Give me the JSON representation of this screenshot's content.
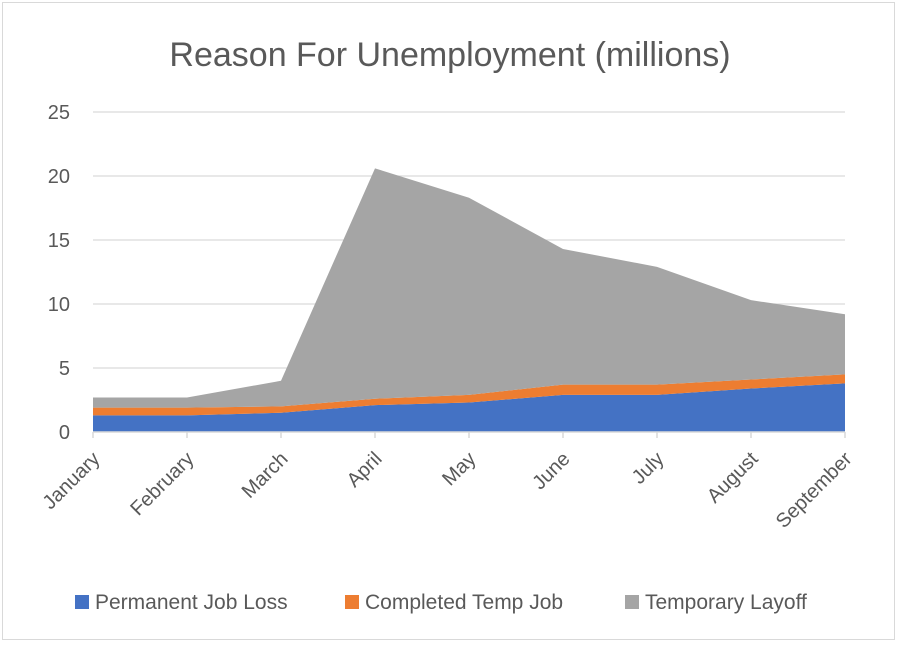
{
  "chart_data": {
    "type": "area",
    "stacked": true,
    "title": "Reason For Unemployment (millions)",
    "xlabel": "",
    "ylabel": "",
    "categories": [
      "January",
      "February",
      "March",
      "April",
      "May",
      "June",
      "July",
      "August",
      "September"
    ],
    "y_ticks": [
      "0",
      "5",
      "10",
      "15",
      "20",
      "25"
    ],
    "ylim": [
      0,
      25
    ],
    "grid": true,
    "legend": "bottom",
    "series": [
      {
        "name": "Permanent Job Loss",
        "color": "#4472c4",
        "values": [
          1.3,
          1.3,
          1.5,
          2.1,
          2.3,
          2.9,
          2.9,
          3.4,
          3.8
        ]
      },
      {
        "name": "Completed Temp Job",
        "color": "#ed7d31",
        "values": [
          0.6,
          0.6,
          0.5,
          0.5,
          0.6,
          0.8,
          0.8,
          0.7,
          0.7
        ]
      },
      {
        "name": "Temporary Layoff",
        "color": "#a5a5a5",
        "values": [
          0.8,
          0.8,
          2.0,
          18.0,
          15.4,
          10.6,
          9.2,
          6.2,
          4.7
        ]
      }
    ]
  }
}
